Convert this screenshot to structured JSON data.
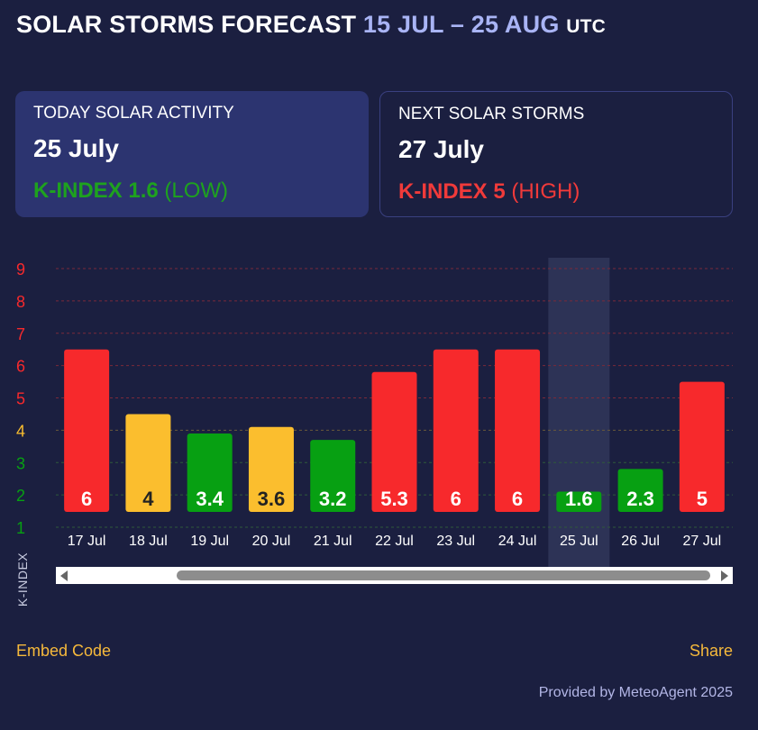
{
  "header": {
    "title": "SOLAR STORMS FORECAST",
    "range": "15 JUL – 25 AUG",
    "timezone": "UTC"
  },
  "today_card": {
    "label": "TODAY SOLAR ACTIVITY",
    "date": "25 July",
    "k_text": "K-INDEX 1.6",
    "level": "(LOW)"
  },
  "next_card": {
    "label": "NEXT SOLAR STORMS",
    "date": "27 July",
    "k_text": "K-INDEX 5",
    "level": "(HIGH)"
  },
  "colors": {
    "background": "#1b1f40",
    "low": "#07a012",
    "moderate": "#fbbe2e",
    "high": "#f7292c",
    "accent_link": "#f6b93b"
  },
  "chart_data": {
    "type": "bar",
    "categories": [
      "17 Jul",
      "18 Jul",
      "19 Jul",
      "20 Jul",
      "21 Jul",
      "22 Jul",
      "23 Jul",
      "24 Jul",
      "25 Jul",
      "26 Jul",
      "27 Jul"
    ],
    "values": [
      6,
      4,
      3.4,
      3.6,
      3.2,
      5.3,
      6,
      6,
      1.6,
      2.3,
      5
    ],
    "value_labels": [
      "6",
      "4",
      "3.4",
      "3.6",
      "3.2",
      "5.3",
      "6",
      "6",
      "1.6",
      "2.3",
      "5"
    ],
    "bar_levels": [
      "high",
      "moderate",
      "low",
      "moderate",
      "low",
      "high",
      "high",
      "high",
      "low",
      "low",
      "high"
    ],
    "highlight_category": "25 Jul",
    "yticks": [
      "1",
      "2",
      "3",
      "4",
      "5",
      "6",
      "7",
      "8",
      "9"
    ],
    "ylim": [
      1,
      9
    ],
    "ylabel": "K-INDEX",
    "grid": true
  },
  "footer": {
    "embed_label": "Embed Code",
    "share_label": "Share",
    "credit": "Provided by MeteoAgent 2025"
  }
}
